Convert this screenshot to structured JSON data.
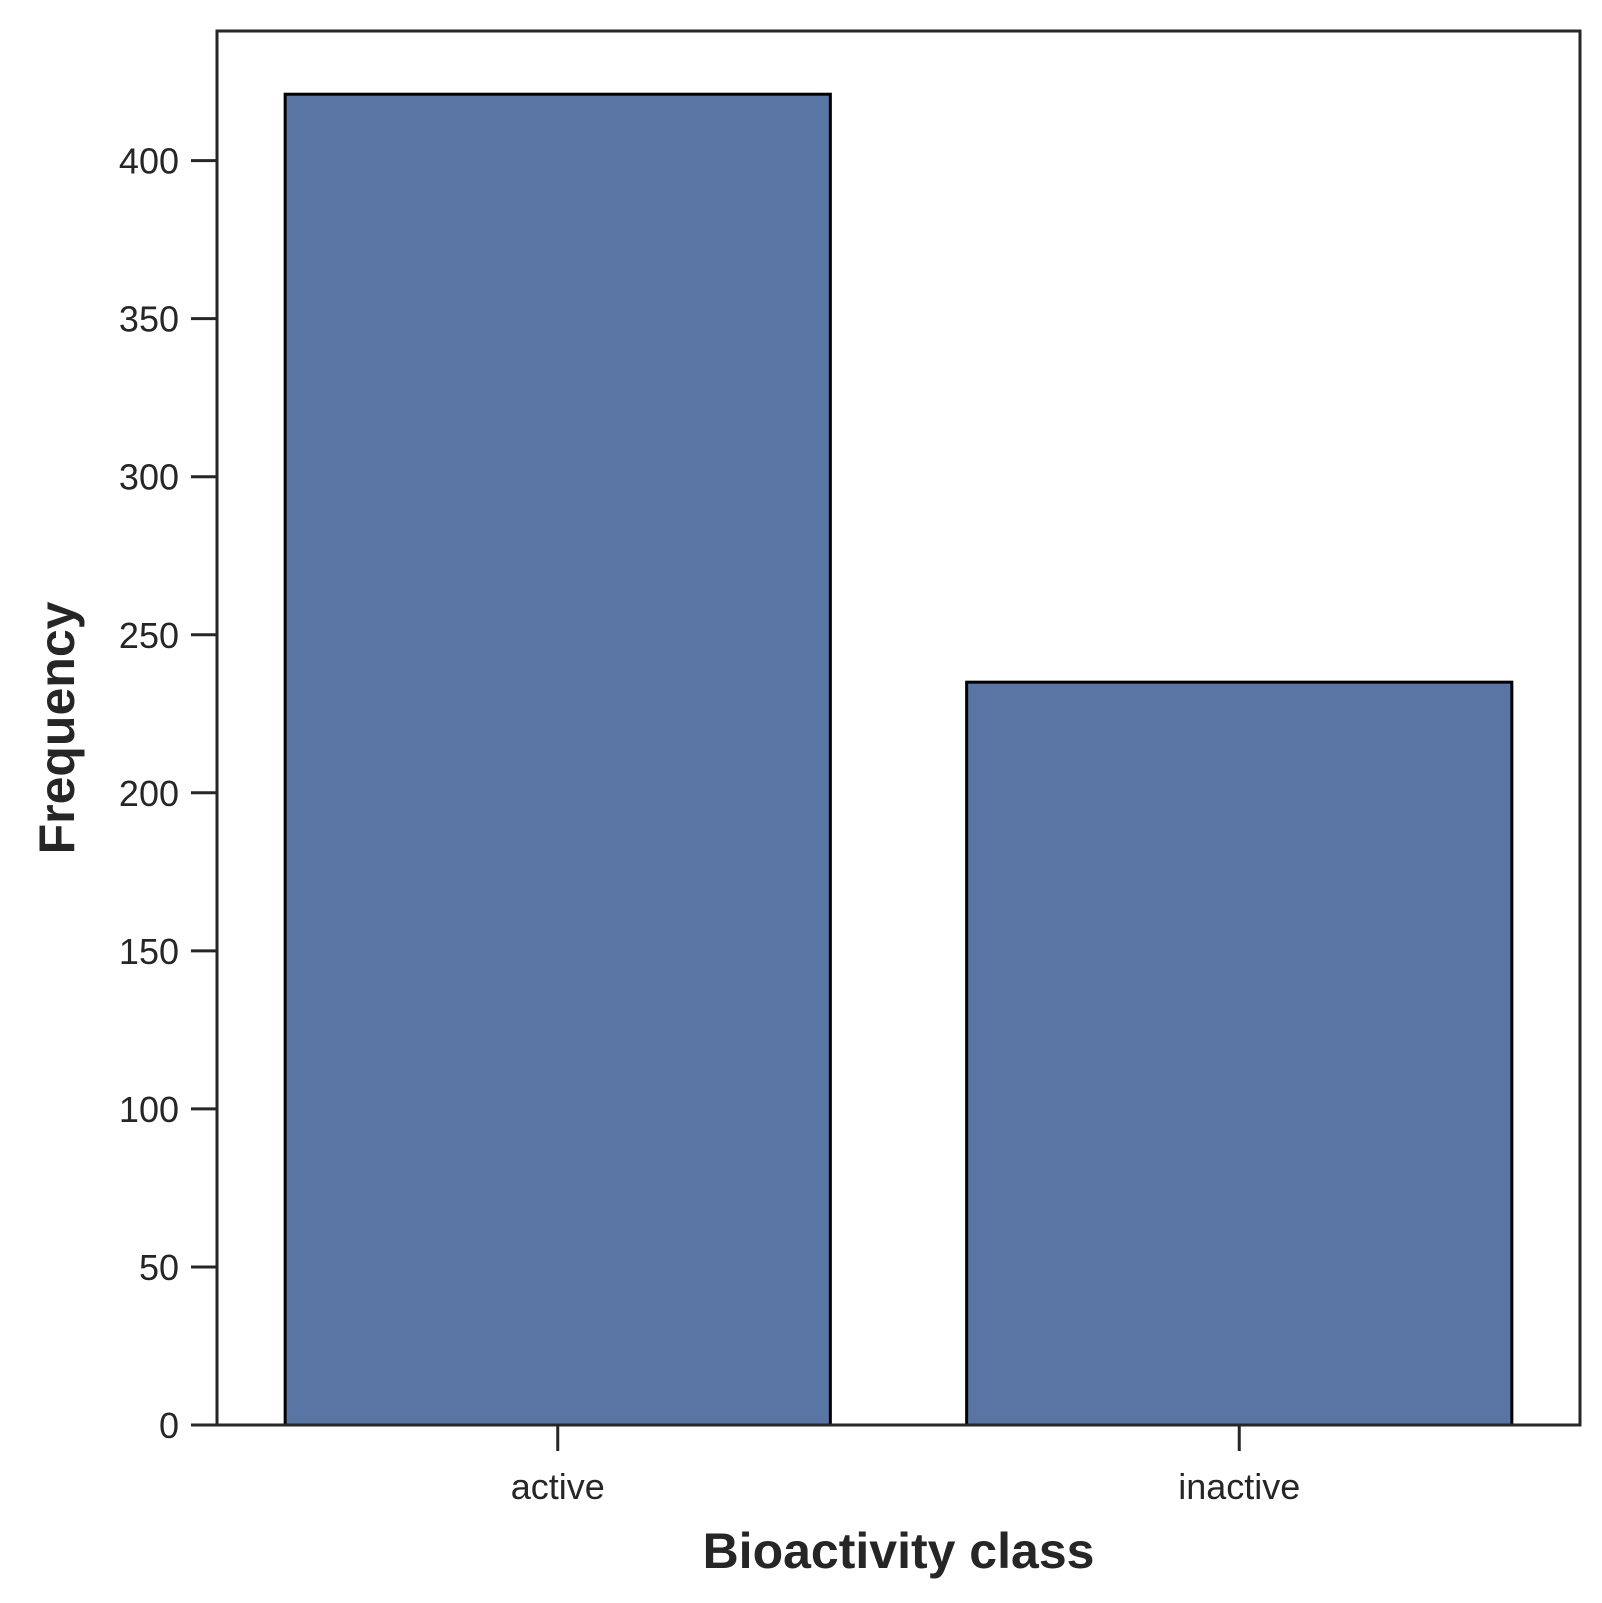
{
  "chart_data": {
    "type": "bar",
    "title": "",
    "xlabel": "Bioactivity class",
    "ylabel": "Frequency",
    "categories": [
      "active",
      "inactive"
    ],
    "values": [
      421,
      235
    ],
    "ylim": [
      0,
      441
    ],
    "yticks": [
      0,
      50,
      100,
      150,
      200,
      250,
      300,
      350,
      400
    ],
    "grid": false,
    "legend": "none",
    "colors": {
      "bar_fill": "#5975a4",
      "bar_edge": "#000000",
      "axes": "#262626",
      "text": "#262626"
    }
  }
}
